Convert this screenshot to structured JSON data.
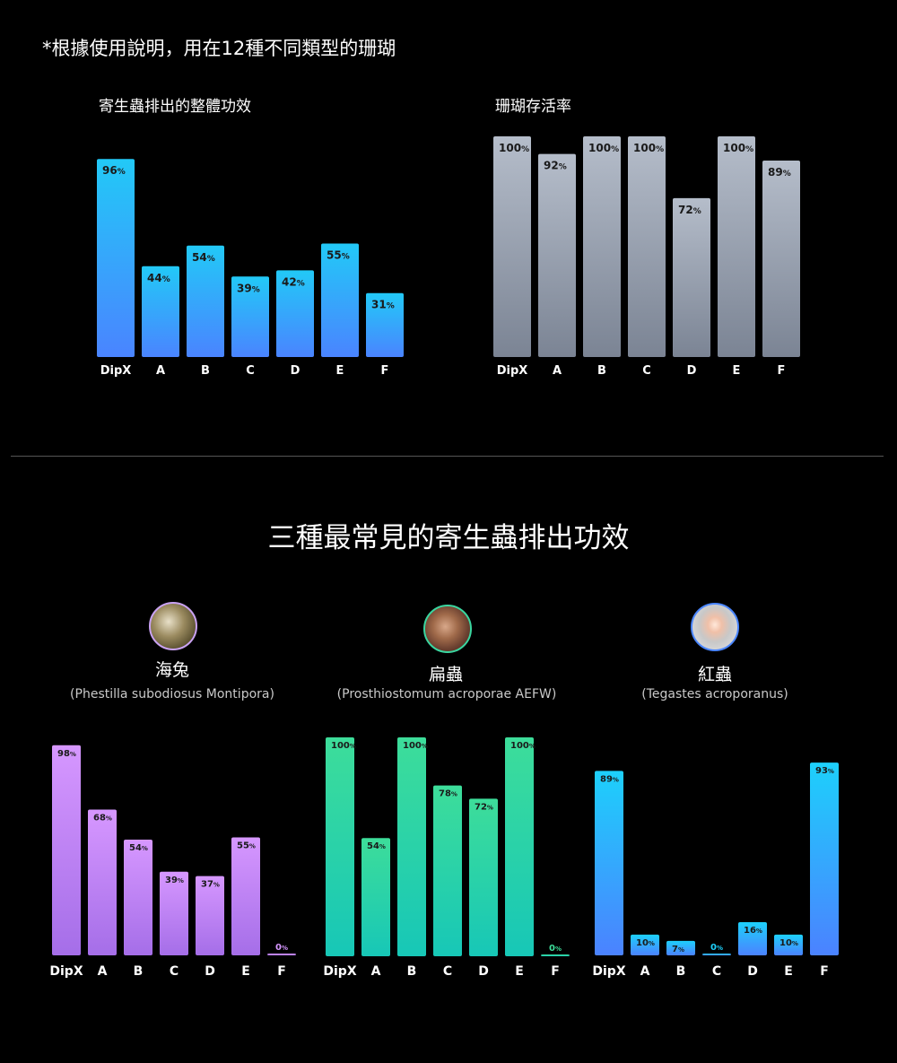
{
  "note": "*根據使用說明，用在12種不同類型的珊瑚",
  "section_title": "三種最常見的寄生蟲排出功效",
  "pests": [
    {
      "name": "海兔",
      "scientific": "(Phestilla subodiosus Montipora)",
      "ring_color": "#c9a2f2"
    },
    {
      "name": "扁蟲",
      "scientific": "(Prosthiostomum acroporae AEFW)",
      "ring_color": "#3ad6a0"
    },
    {
      "name": "紅蟲",
      "scientific": "(Tegastes acroporanus)",
      "ring_color": "#4a86ff"
    }
  ],
  "chart_data": [
    {
      "type": "bar",
      "title": "寄生蟲排出的整體功效",
      "categories": [
        "DipX",
        "A",
        "B",
        "C",
        "D",
        "E",
        "F"
      ],
      "values": [
        96,
        44,
        54,
        39,
        42,
        55,
        31
      ],
      "unit": "%",
      "ylim": [
        0,
        100
      ],
      "gradient": [
        "#22c9f7",
        "#4a84ff"
      ]
    },
    {
      "type": "bar",
      "title": "珊瑚存活率",
      "categories": [
        "DipX",
        "A",
        "B",
        "C",
        "D",
        "E",
        "F"
      ],
      "values": [
        100,
        92,
        100,
        100,
        72,
        100,
        89
      ],
      "unit": "%",
      "ylim": [
        0,
        100
      ],
      "gradient": [
        "#b5bdca",
        "#7b8494"
      ]
    },
    {
      "type": "bar",
      "title": "",
      "categories": [
        "DipX",
        "A",
        "B",
        "C",
        "D",
        "E",
        "F"
      ],
      "values": [
        98,
        68,
        54,
        39,
        37,
        55,
        0
      ],
      "unit": "%",
      "ylim": [
        0,
        100
      ],
      "gradient": [
        "#d697ff",
        "#a56ee8"
      ]
    },
    {
      "type": "bar",
      "title": "",
      "categories": [
        "DipX",
        "A",
        "B",
        "C",
        "D",
        "E",
        "F"
      ],
      "values": [
        100,
        54,
        100,
        78,
        72,
        100,
        0
      ],
      "unit": "%",
      "ylim": [
        0,
        100
      ],
      "gradient": [
        "#3ddd9a",
        "#17c7b7"
      ]
    },
    {
      "type": "bar",
      "title": "",
      "categories": [
        "DipX",
        "A",
        "B",
        "C",
        "D",
        "E",
        "F"
      ],
      "values": [
        89,
        10,
        7,
        0,
        16,
        10,
        93
      ],
      "unit": "%",
      "ylim": [
        0,
        100
      ],
      "gradient": [
        "#1dd0fb",
        "#4b82ff"
      ]
    }
  ]
}
